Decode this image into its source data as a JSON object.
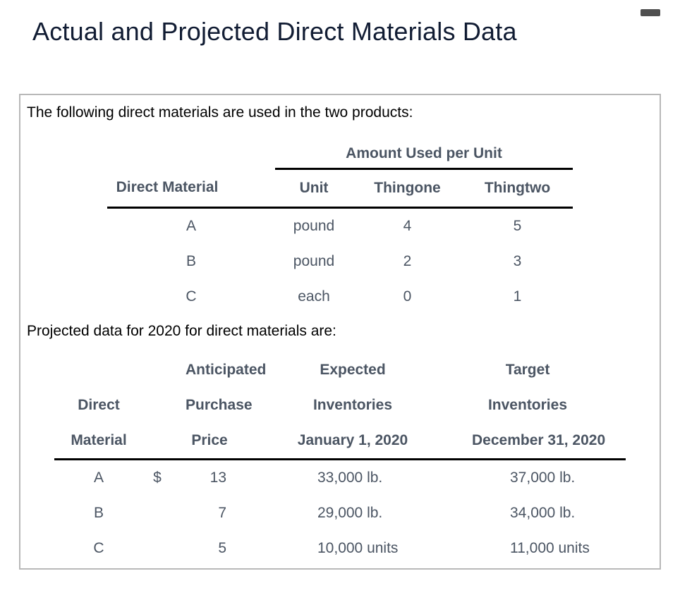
{
  "header": {
    "title": "Actual and Projected Direct Materials Data"
  },
  "controls": {
    "minimize_icon": "dash-icon"
  },
  "colors": {
    "title_text": "#111c33",
    "body_text": "#000000",
    "table_text": "#4b5563",
    "table_rule": "#000000",
    "panel_border": "#b8b8b8",
    "dash_icon": "#4f4f4f",
    "background": "#ffffff"
  },
  "panel": {
    "intro_usage": "The following direct materials are used in the two products:",
    "usage_table": {
      "group_header": "Amount Used per Unit",
      "columns": [
        "Direct Material",
        "Unit",
        "Thingone",
        "Thingtwo"
      ],
      "rows": [
        [
          "A",
          "pound",
          "4",
          "5"
        ],
        [
          "B",
          "pound",
          "2",
          "3"
        ],
        [
          "C",
          "each",
          "0",
          "1"
        ]
      ]
    },
    "intro_projected": "Projected data for 2020 for direct materials are:",
    "projected_table": {
      "col_material": [
        "Direct",
        "Material"
      ],
      "col_price": [
        "Anticipated",
        "Purchase",
        "Price"
      ],
      "col_expected": [
        "Expected",
        "Inventories",
        "January 1, 2020"
      ],
      "col_target": [
        "Target",
        "Inventories",
        "December 31, 2020"
      ],
      "rows": [
        [
          "A",
          "$",
          "13",
          "33,000 lb.",
          "37,000 lb."
        ],
        [
          "B",
          "",
          "7",
          "29,000 lb.",
          "34,000 lb."
        ],
        [
          "C",
          "",
          "5",
          "10,000 units",
          "11,000 units"
        ]
      ]
    }
  }
}
